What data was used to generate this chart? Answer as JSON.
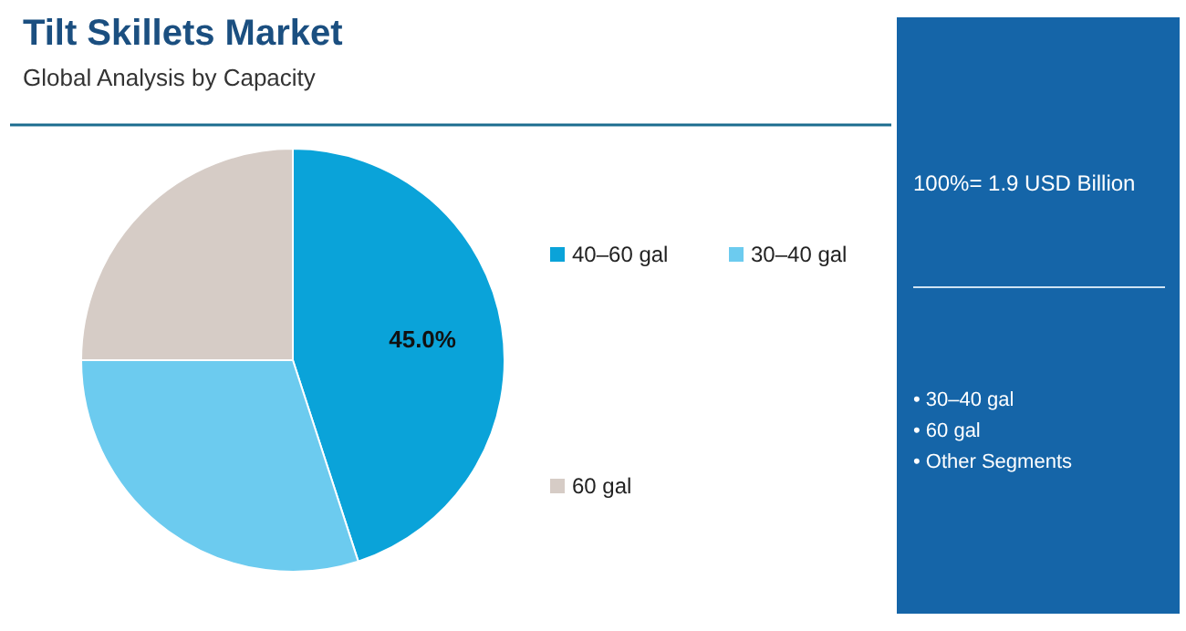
{
  "chart_data": {
    "type": "pie",
    "title": "Tilt Skillets Market",
    "subtitle": "Global Analysis by Capacity",
    "categories": [
      "40–60 gal",
      "30–40 gal",
      "60 gal"
    ],
    "values": [
      45.0,
      30,
      25
    ],
    "colors": [
      "#0aa3d9",
      "#6ccbef",
      "#d6ccc6"
    ],
    "value_labels": [
      "45.0%",
      null,
      null
    ],
    "legend": "right",
    "annotations": [
      "100%= 1.9 USD Billion",
      "• 30–40 gal",
      "• 60 gal",
      "• Other Segments"
    ]
  }
}
